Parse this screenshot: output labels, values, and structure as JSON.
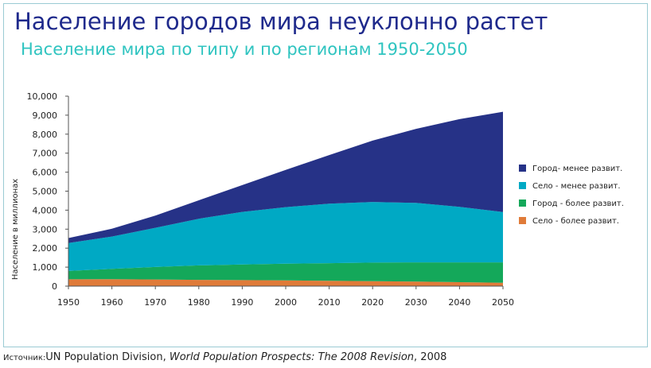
{
  "header": {
    "title": "Население городов мира неуклонно растет",
    "subtitle": "Население мира по типу и по регионам 1950-2050"
  },
  "source": {
    "label": "Источник:",
    "org": "UN Population Division, ",
    "publication": "World Population Prospects: The 2008 Revision",
    "year": ", 2008"
  },
  "chart_data": {
    "type": "area",
    "stacked": true,
    "ylabel": "Население в миллионах",
    "xlabel": "",
    "ylim": [
      0,
      10000
    ],
    "xlim": [
      1950,
      2050
    ],
    "grid": false,
    "legend_position": "right",
    "y_ticks": [
      "0",
      "1,000",
      "2,000",
      "3,000",
      "4,000",
      "5,000",
      "6,000",
      "7,000",
      "8,000",
      "9,000",
      "10,000"
    ],
    "x_ticks": [
      "1950",
      "1960",
      "1970",
      "1980",
      "1990",
      "2000",
      "2010",
      "2020",
      "2030",
      "2040",
      "2050"
    ],
    "x": [
      1950,
      1960,
      1970,
      1980,
      1990,
      2000,
      2010,
      2020,
      2030,
      2040,
      2050
    ],
    "series": [
      {
        "name": "Село - более развит.",
        "color": "#e07b39",
        "values": [
          360,
          370,
          350,
          330,
          320,
          300,
          280,
          260,
          240,
          210,
          180
        ]
      },
      {
        "name": "Город - более развит.",
        "color": "#14a85a",
        "values": [
          440,
          540,
          660,
          760,
          820,
          880,
          930,
          980,
          1010,
          1040,
          1070
        ]
      },
      {
        "name": "Село - менее развит.",
        "color": "#00a9c4",
        "values": [
          1470,
          1700,
          2060,
          2460,
          2770,
          2980,
          3130,
          3190,
          3130,
          2920,
          2650
        ]
      },
      {
        "name": "Город- менее развит.",
        "color": "#263287",
        "values": [
          260,
          410,
          640,
          970,
          1410,
          1960,
          2560,
          3230,
          3900,
          4620,
          5280
        ]
      }
    ],
    "legend_order": [
      3,
      2,
      1,
      0
    ]
  }
}
